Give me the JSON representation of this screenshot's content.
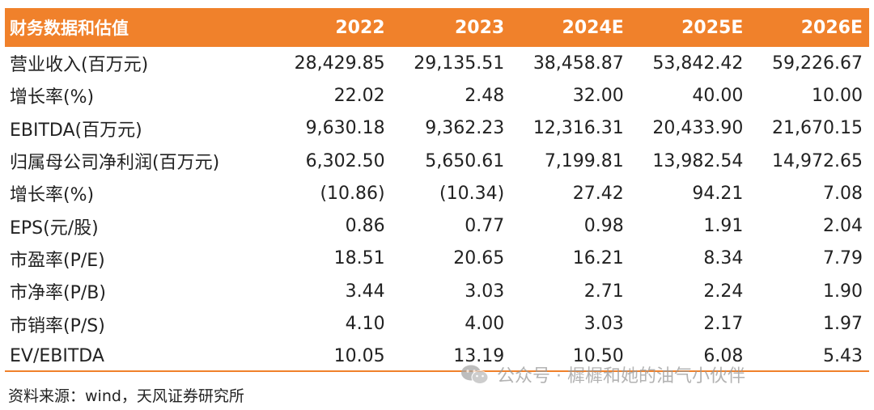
{
  "table": {
    "header_label": "财务数据和估值",
    "years": [
      "2022",
      "2023",
      "2024E",
      "2025E",
      "2026E"
    ],
    "rows": [
      {
        "label": "营业收入(百万元)",
        "values": [
          "28,429.85",
          "29,135.51",
          "38,458.87",
          "53,842.42",
          "59,226.67"
        ]
      },
      {
        "label": "增长率(%)",
        "values": [
          "22.02",
          "2.48",
          "32.00",
          "40.00",
          "10.00"
        ]
      },
      {
        "label": "EBITDA(百万元)",
        "values": [
          "9,630.18",
          "9,362.23",
          "12,316.31",
          "20,433.90",
          "21,670.15"
        ]
      },
      {
        "label": "归属母公司净利润(百万元)",
        "values": [
          "6,302.50",
          "5,650.61",
          "7,199.81",
          "13,982.54",
          "14,972.65"
        ]
      },
      {
        "label": "增长率(%)",
        "values": [
          "(10.86)",
          "(10.34)",
          "27.42",
          "94.21",
          "7.08"
        ]
      },
      {
        "label": "EPS(元/股)",
        "values": [
          "0.86",
          "0.77",
          "0.98",
          "1.91",
          "2.04"
        ]
      },
      {
        "label": "市盈率(P/E)",
        "values": [
          "18.51",
          "20.65",
          "16.21",
          "8.34",
          "7.79"
        ]
      },
      {
        "label": "市净率(P/B)",
        "values": [
          "3.44",
          "3.03",
          "2.71",
          "2.24",
          "1.90"
        ]
      },
      {
        "label": "市销率(P/S)",
        "values": [
          "4.10",
          "4.00",
          "3.03",
          "2.17",
          "1.97"
        ]
      },
      {
        "label": "EV/EBITDA",
        "values": [
          "10.05",
          "13.19",
          "10.50",
          "6.08",
          "5.43"
        ]
      }
    ]
  },
  "source": "资料来源：wind，天风证券研究所",
  "watermark": {
    "text": "公众号 · 樨樨和她的油气小伙伴",
    "icon": "wechat-icon"
  },
  "colors": {
    "header_bg": "#f0812b",
    "header_text": "#ffffff",
    "body_text": "#222222",
    "rule": "#f0812b"
  }
}
